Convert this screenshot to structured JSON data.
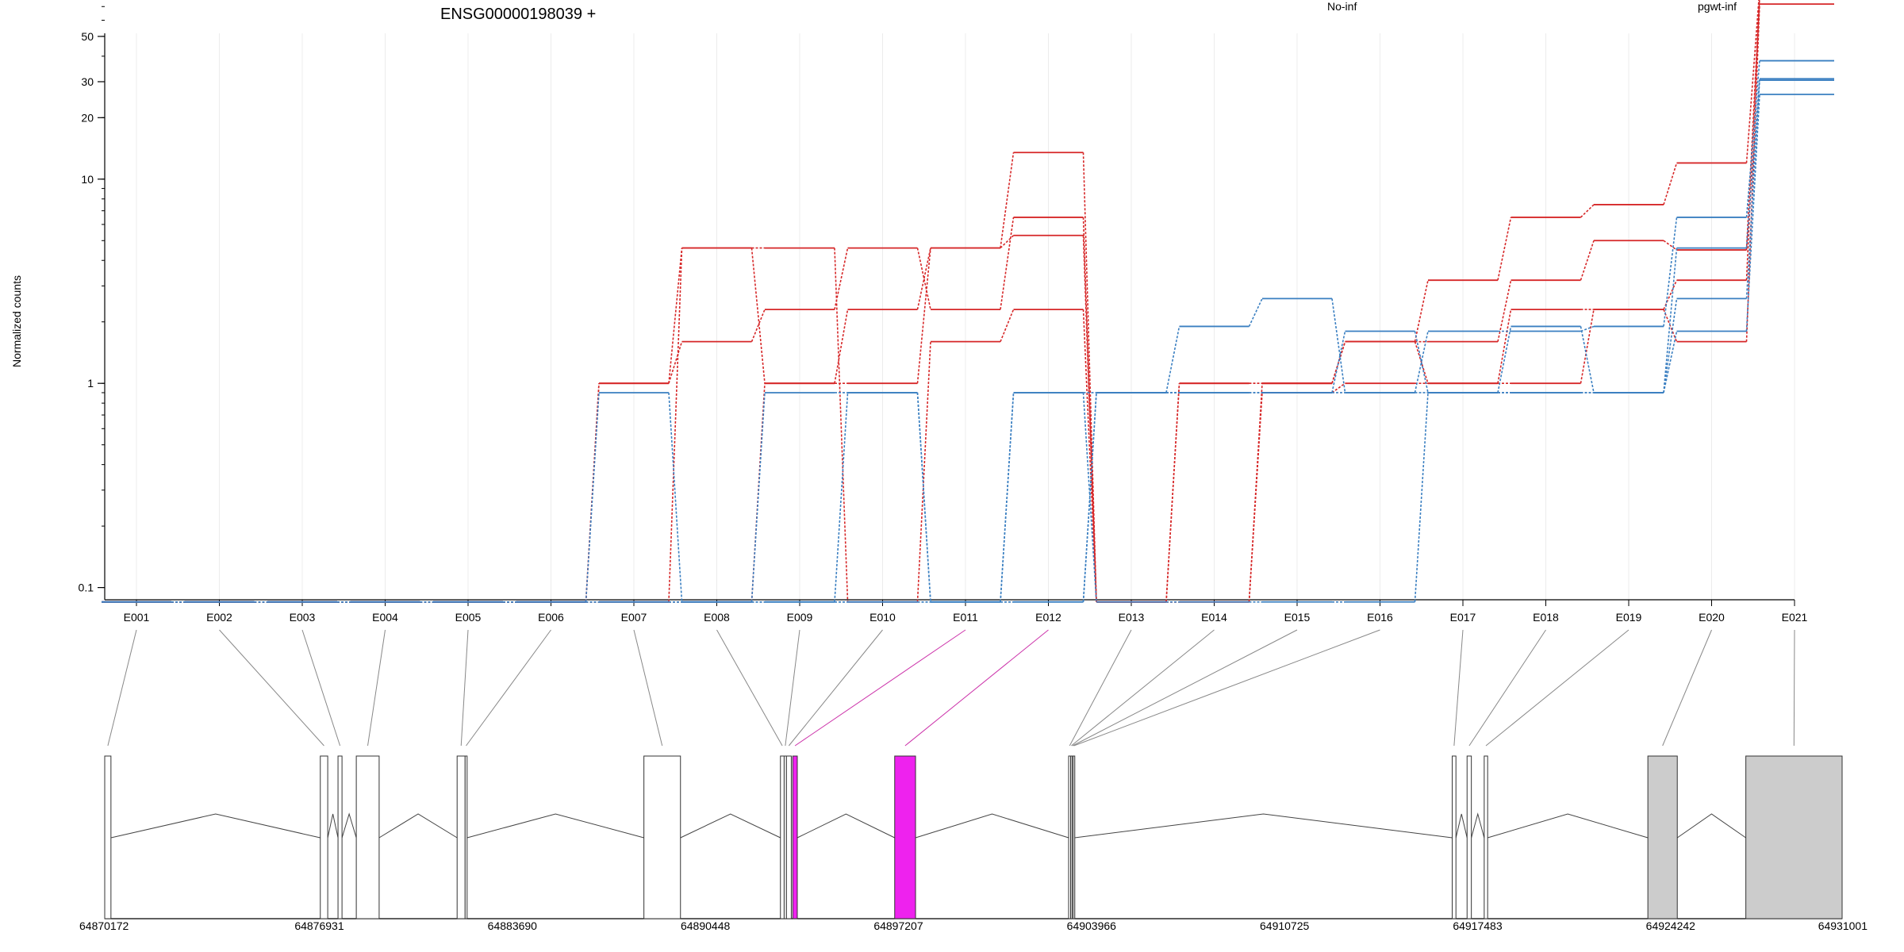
{
  "chart_data": {
    "type": "line",
    "title": "ENSG00000198039 +",
    "ylabel": "Normalized counts",
    "xlabel": "",
    "y_scale": "log",
    "ylim": [
      0.08,
      120
    ],
    "y_ticks": [
      0.1,
      1,
      10,
      20,
      30,
      50
    ],
    "y_tick_labels": [
      "0.1",
      "1",
      "10",
      "20",
      "30",
      "50"
    ],
    "grid": "vertical-only",
    "legend_placement": "top",
    "categories": [
      "E001",
      "E002",
      "E003",
      "E004",
      "E005",
      "E006",
      "E007",
      "E008",
      "E009",
      "E010",
      "E011",
      "E012",
      "E013",
      "E014",
      "E015",
      "E016",
      "E017",
      "E018",
      "E019",
      "E020",
      "E021"
    ],
    "groups": [
      {
        "label": "No-inf",
        "color": "#d62728"
      },
      {
        "label": "pgwt-inf",
        "color": "#3a7fc1"
      }
    ],
    "series": [
      {
        "group": 0,
        "values": [
          0.085,
          0.085,
          0.085,
          0.085,
          0.085,
          0.085,
          1.0,
          4.6,
          1.0,
          1.0,
          4.6,
          13.5,
          0.085,
          1.0,
          1.0,
          1.6,
          3.2,
          6.5,
          7.5,
          12.0,
          85
        ]
      },
      {
        "group": 0,
        "values": [
          0.085,
          0.085,
          0.085,
          0.085,
          0.085,
          0.085,
          1.0,
          1.6,
          2.3,
          4.6,
          2.3,
          6.5,
          0.085,
          1.0,
          1.0,
          1.6,
          1.6,
          3.2,
          5.0,
          4.5,
          80
        ]
      },
      {
        "group": 0,
        "values": [
          0.085,
          0.085,
          0.085,
          0.085,
          0.085,
          0.085,
          0.085,
          4.6,
          4.6,
          0.085,
          1.6,
          2.3,
          0.085,
          0.085,
          1.0,
          1.6,
          1.0,
          1.0,
          2.3,
          3.2,
          78
        ]
      },
      {
        "group": 0,
        "values": [
          0.085,
          0.085,
          0.085,
          0.085,
          0.085,
          0.085,
          0.085,
          0.085,
          1.0,
          2.3,
          4.6,
          5.3,
          0.085,
          0.085,
          0.9,
          1.0,
          1.0,
          2.3,
          2.3,
          1.6,
          72
        ]
      },
      {
        "group": 1,
        "values": [
          0.085,
          0.085,
          0.085,
          0.085,
          0.085,
          0.085,
          0.9,
          0.085,
          0.9,
          0.9,
          0.085,
          0.9,
          0.9,
          1.9,
          2.6,
          0.9,
          1.8,
          1.8,
          1.9,
          6.5,
          38
        ]
      },
      {
        "group": 1,
        "values": [
          0.085,
          0.085,
          0.085,
          0.085,
          0.085,
          0.085,
          0.085,
          0.085,
          0.085,
          0.9,
          0.085,
          0.085,
          0.9,
          0.9,
          0.9,
          1.8,
          0.9,
          1.9,
          0.9,
          4.6,
          31
        ]
      },
      {
        "group": 1,
        "values": [
          0.085,
          0.085,
          0.085,
          0.085,
          0.085,
          0.085,
          0.085,
          0.085,
          0.085,
          0.085,
          0.085,
          0.9,
          0.085,
          0.085,
          0.085,
          0.085,
          0.9,
          0.9,
          0.9,
          2.6,
          30.5
        ]
      },
      {
        "group": 1,
        "values": [
          0.085,
          0.085,
          0.085,
          0.085,
          0.085,
          0.085,
          0.085,
          0.085,
          0.085,
          0.085,
          0.085,
          0.085,
          0.9,
          0.9,
          0.9,
          0.9,
          0.9,
          0.9,
          0.9,
          1.8,
          26
        ]
      }
    ],
    "gene_model": {
      "axis_range": [
        64870172,
        64931001
      ],
      "axis_ticks": [
        64870172,
        64876931,
        64883690,
        64890448,
        64897207,
        64903966,
        64910725,
        64917483,
        64924242,
        64931001
      ],
      "axis_tick_labels": [
        "64870172",
        "64876931",
        "64883690",
        "64890448",
        "64897207",
        "64903966",
        "64910725",
        "64917483",
        "64924242",
        "64931001"
      ],
      "exons": [
        {
          "id": "E001",
          "start": 64870172,
          "end": 64870390,
          "kind": "exon"
        },
        {
          "id": "E002",
          "start": 64877720,
          "end": 64877980,
          "kind": "exon"
        },
        {
          "id": "E003",
          "start": 64878340,
          "end": 64878480,
          "kind": "exon"
        },
        {
          "id": "E004",
          "start": 64878980,
          "end": 64879780,
          "kind": "exon"
        },
        {
          "id": "E005",
          "start": 64882510,
          "end": 64882790,
          "kind": "exon"
        },
        {
          "id": "E006",
          "start": 64882790,
          "end": 64882860,
          "kind": "exon"
        },
        {
          "id": "E007",
          "start": 64889050,
          "end": 64890330,
          "kind": "exon"
        },
        {
          "id": "E008",
          "start": 64893830,
          "end": 64893960,
          "kind": "exon"
        },
        {
          "id": "E009",
          "start": 64893960,
          "end": 64894040,
          "kind": "exon"
        },
        {
          "id": "E010",
          "start": 64894040,
          "end": 64894210,
          "kind": "exon"
        },
        {
          "id": "E011",
          "start": 64894260,
          "end": 64894420,
          "kind": "highlight"
        },
        {
          "id": "E012",
          "start": 64897830,
          "end": 64898560,
          "kind": "highlight"
        },
        {
          "id": "E013",
          "start": 64903920,
          "end": 64903990,
          "kind": "exon"
        },
        {
          "id": "E014",
          "start": 64903990,
          "end": 64904040,
          "kind": "exon"
        },
        {
          "id": "E015",
          "start": 64904040,
          "end": 64904080,
          "kind": "exon"
        },
        {
          "id": "E016",
          "start": 64904080,
          "end": 64904130,
          "kind": "exon"
        },
        {
          "id": "E017",
          "start": 64917350,
          "end": 64917480,
          "kind": "exon"
        },
        {
          "id": "E018",
          "start": 64917870,
          "end": 64918020,
          "kind": "exon"
        },
        {
          "id": "E019",
          "start": 64918470,
          "end": 64918590,
          "kind": "exon"
        },
        {
          "id": "E020",
          "start": 64924200,
          "end": 64925230,
          "kind": "utr"
        },
        {
          "id": "E021",
          "start": 64927630,
          "end": 64931001,
          "kind": "utr"
        }
      ]
    }
  }
}
